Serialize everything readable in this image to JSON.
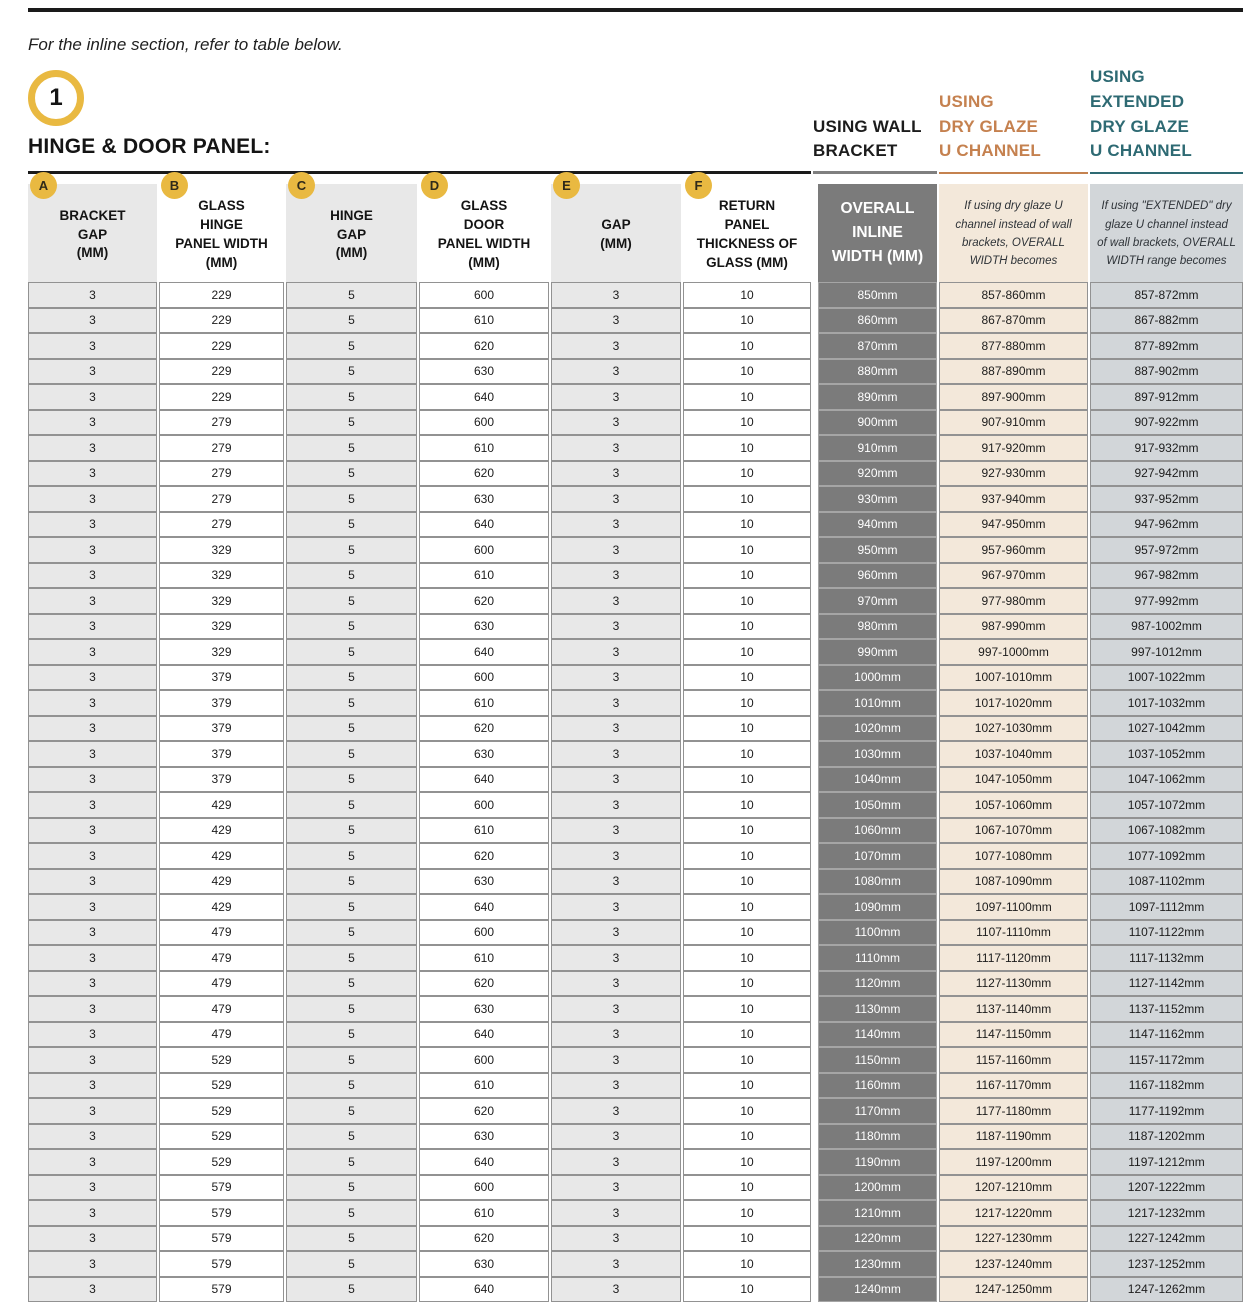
{
  "page": {
    "intro": "For the inline section, refer to table below.",
    "step_number": "1",
    "section_title": "HINGE & DOOR PANEL:"
  },
  "table": {
    "group_labels": {
      "wall_bracket": "USING WALL\nBRACKET",
      "dry_glaze": "USING\nDRY GLAZE\nU CHANNEL",
      "extended_dry_glaze": "USING\nEXTENDED\nDRY GLAZE\nU CHANNEL"
    },
    "columns": [
      {
        "badge": "A",
        "label": "BRACKET\nGAP\n(MM)"
      },
      {
        "badge": "B",
        "label": "GLASS\nHINGE\nPANEL WIDTH\n(MM)"
      },
      {
        "badge": "C",
        "label": "HINGE\nGAP\n(MM)"
      },
      {
        "badge": "D",
        "label": "GLASS\nDOOR\nPANEL WIDTH\n(MM)"
      },
      {
        "badge": "E",
        "label": "GAP\n(MM)"
      },
      {
        "badge": "F",
        "label": "RETURN\nPANEL\nTHICKNESS OF\nGLASS (MM)"
      }
    ],
    "right_columns": [
      {
        "key": "overall_inline_width",
        "label": "OVERALL\nINLINE\nWIDTH (MM)"
      },
      {
        "key": "dry_glaze_note",
        "note": "If using dry glaze U\nchannel instead of wall\nbrackets, OVERALL\nWIDTH becomes"
      },
      {
        "key": "extended_dry_glaze_note",
        "note": "If using \"EXTENDED\" dry\nglaze U channel instead\nof wall brackets, OVERALL\nWIDTH range becomes"
      }
    ],
    "rows": [
      [
        "3",
        "229",
        "5",
        "600",
        "3",
        "10",
        "850mm",
        "857-860mm",
        "857-872mm"
      ],
      [
        "3",
        "229",
        "5",
        "610",
        "3",
        "10",
        "860mm",
        "867-870mm",
        "867-882mm"
      ],
      [
        "3",
        "229",
        "5",
        "620",
        "3",
        "10",
        "870mm",
        "877-880mm",
        "877-892mm"
      ],
      [
        "3",
        "229",
        "5",
        "630",
        "3",
        "10",
        "880mm",
        "887-890mm",
        "887-902mm"
      ],
      [
        "3",
        "229",
        "5",
        "640",
        "3",
        "10",
        "890mm",
        "897-900mm",
        "897-912mm"
      ],
      [
        "3",
        "279",
        "5",
        "600",
        "3",
        "10",
        "900mm",
        "907-910mm",
        "907-922mm"
      ],
      [
        "3",
        "279",
        "5",
        "610",
        "3",
        "10",
        "910mm",
        "917-920mm",
        "917-932mm"
      ],
      [
        "3",
        "279",
        "5",
        "620",
        "3",
        "10",
        "920mm",
        "927-930mm",
        "927-942mm"
      ],
      [
        "3",
        "279",
        "5",
        "630",
        "3",
        "10",
        "930mm",
        "937-940mm",
        "937-952mm"
      ],
      [
        "3",
        "279",
        "5",
        "640",
        "3",
        "10",
        "940mm",
        "947-950mm",
        "947-962mm"
      ],
      [
        "3",
        "329",
        "5",
        "600",
        "3",
        "10",
        "950mm",
        "957-960mm",
        "957-972mm"
      ],
      [
        "3",
        "329",
        "5",
        "610",
        "3",
        "10",
        "960mm",
        "967-970mm",
        "967-982mm"
      ],
      [
        "3",
        "329",
        "5",
        "620",
        "3",
        "10",
        "970mm",
        "977-980mm",
        "977-992mm"
      ],
      [
        "3",
        "329",
        "5",
        "630",
        "3",
        "10",
        "980mm",
        "987-990mm",
        "987-1002mm"
      ],
      [
        "3",
        "329",
        "5",
        "640",
        "3",
        "10",
        "990mm",
        "997-1000mm",
        "997-1012mm"
      ],
      [
        "3",
        "379",
        "5",
        "600",
        "3",
        "10",
        "1000mm",
        "1007-1010mm",
        "1007-1022mm"
      ],
      [
        "3",
        "379",
        "5",
        "610",
        "3",
        "10",
        "1010mm",
        "1017-1020mm",
        "1017-1032mm"
      ],
      [
        "3",
        "379",
        "5",
        "620",
        "3",
        "10",
        "1020mm",
        "1027-1030mm",
        "1027-1042mm"
      ],
      [
        "3",
        "379",
        "5",
        "630",
        "3",
        "10",
        "1030mm",
        "1037-1040mm",
        "1037-1052mm"
      ],
      [
        "3",
        "379",
        "5",
        "640",
        "3",
        "10",
        "1040mm",
        "1047-1050mm",
        "1047-1062mm"
      ],
      [
        "3",
        "429",
        "5",
        "600",
        "3",
        "10",
        "1050mm",
        "1057-1060mm",
        "1057-1072mm"
      ],
      [
        "3",
        "429",
        "5",
        "610",
        "3",
        "10",
        "1060mm",
        "1067-1070mm",
        "1067-1082mm"
      ],
      [
        "3",
        "429",
        "5",
        "620",
        "3",
        "10",
        "1070mm",
        "1077-1080mm",
        "1077-1092mm"
      ],
      [
        "3",
        "429",
        "5",
        "630",
        "3",
        "10",
        "1080mm",
        "1087-1090mm",
        "1087-1102mm"
      ],
      [
        "3",
        "429",
        "5",
        "640",
        "3",
        "10",
        "1090mm",
        "1097-1100mm",
        "1097-1112mm"
      ],
      [
        "3",
        "479",
        "5",
        "600",
        "3",
        "10",
        "1100mm",
        "1107-1110mm",
        "1107-1122mm"
      ],
      [
        "3",
        "479",
        "5",
        "610",
        "3",
        "10",
        "1110mm",
        "1117-1120mm",
        "1117-1132mm"
      ],
      [
        "3",
        "479",
        "5",
        "620",
        "3",
        "10",
        "1120mm",
        "1127-1130mm",
        "1127-1142mm"
      ],
      [
        "3",
        "479",
        "5",
        "630",
        "3",
        "10",
        "1130mm",
        "1137-1140mm",
        "1137-1152mm"
      ],
      [
        "3",
        "479",
        "5",
        "640",
        "3",
        "10",
        "1140mm",
        "1147-1150mm",
        "1147-1162mm"
      ],
      [
        "3",
        "529",
        "5",
        "600",
        "3",
        "10",
        "1150mm",
        "1157-1160mm",
        "1157-1172mm"
      ],
      [
        "3",
        "529",
        "5",
        "610",
        "3",
        "10",
        "1160mm",
        "1167-1170mm",
        "1167-1182mm"
      ],
      [
        "3",
        "529",
        "5",
        "620",
        "3",
        "10",
        "1170mm",
        "1177-1180mm",
        "1177-1192mm"
      ],
      [
        "3",
        "529",
        "5",
        "630",
        "3",
        "10",
        "1180mm",
        "1187-1190mm",
        "1187-1202mm"
      ],
      [
        "3",
        "529",
        "5",
        "640",
        "3",
        "10",
        "1190mm",
        "1197-1200mm",
        "1197-1212mm"
      ],
      [
        "3",
        "579",
        "5",
        "600",
        "3",
        "10",
        "1200mm",
        "1207-1210mm",
        "1207-1222mm"
      ],
      [
        "3",
        "579",
        "5",
        "610",
        "3",
        "10",
        "1210mm",
        "1217-1220mm",
        "1217-1232mm"
      ],
      [
        "3",
        "579",
        "5",
        "620",
        "3",
        "10",
        "1220mm",
        "1227-1230mm",
        "1227-1242mm"
      ],
      [
        "3",
        "579",
        "5",
        "630",
        "3",
        "10",
        "1230mm",
        "1237-1240mm",
        "1237-1252mm"
      ],
      [
        "3",
        "579",
        "5",
        "640",
        "3",
        "10",
        "1240mm",
        "1247-1250mm",
        "1247-1262mm"
      ]
    ]
  },
  "colors": {
    "accent_yellow": "#e9b941",
    "dark_gray_column": "#7b7b7b",
    "cream_column": "#f3e8da",
    "blue_gray_column": "#d2d6d9",
    "light_gray_cell": "#e8e8e8",
    "orange_heading": "#c5814f",
    "teal_heading": "#2e6a73",
    "rule_black": "#1a1a1a",
    "cell_border": "#929292"
  }
}
